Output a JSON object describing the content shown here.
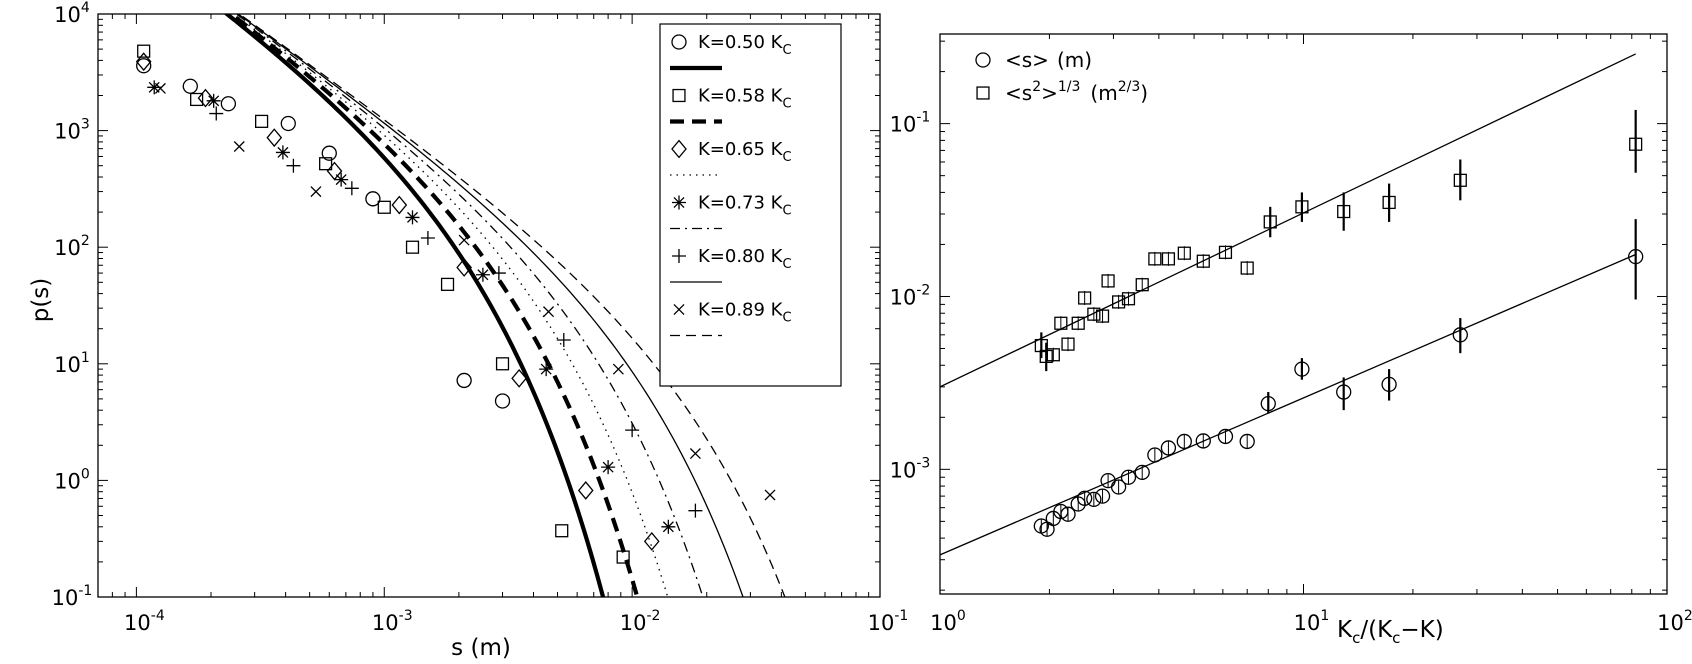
{
  "chart_data": [
    {
      "type": "scatter",
      "xscale": "log",
      "yscale": "log",
      "xlim": [
        7e-05,
        0.1
      ],
      "ylim": [
        0.1,
        10000
      ],
      "xlabel": "s (m)",
      "ylabel": "p(s)",
      "xtick_labels": [
        {
          "value": 0.0001,
          "base": "10",
          "exp": "-4"
        },
        {
          "value": 0.001,
          "base": "10",
          "exp": "-3"
        },
        {
          "value": 0.01,
          "base": "10",
          "exp": "-2"
        },
        {
          "value": 0.1,
          "base": "10",
          "exp": "-1"
        }
      ],
      "ytick_labels": [
        {
          "value": 0.1,
          "base": "10",
          "exp": "-1"
        },
        {
          "value": 1,
          "base": "10",
          "exp": "0"
        },
        {
          "value": 10,
          "base": "10",
          "exp": "1"
        },
        {
          "value": 100,
          "base": "10",
          "exp": "2"
        },
        {
          "value": 1000,
          "base": "10",
          "exp": "3"
        },
        {
          "value": 10000,
          "base": "10",
          "exp": "4"
        }
      ],
      "legend_position": "top-right",
      "series": [
        {
          "label_main": "K=0.50 K",
          "label_sub": "C",
          "marker": "circle",
          "points": [
            [
              0.000107,
              3600
            ],
            [
              0.000165,
              2400
            ],
            [
              0.000235,
              1700
            ],
            [
              0.00041,
              1150
            ],
            [
              0.0006,
              640
            ],
            [
              0.0009,
              260
            ],
            [
              0.0021,
              7.2
            ],
            [
              0.003,
              4.8
            ]
          ],
          "fit": {
            "style": "thick-solid",
            "A": 43000,
            "sc": 0.00118
          }
        },
        {
          "label_main": "K=0.58 K",
          "label_sub": "C",
          "marker": "square",
          "points": [
            [
              0.000107,
              4800
            ],
            [
              0.000175,
              1850
            ],
            [
              0.00032,
              1200
            ],
            [
              0.00058,
              520
            ],
            [
              0.001,
              220
            ],
            [
              0.0013,
              100
            ],
            [
              0.0018,
              48
            ],
            [
              0.003,
              10
            ],
            [
              0.0052,
              0.37
            ],
            [
              0.0092,
              0.22
            ]
          ],
          "fit": {
            "style": "thick-dashed",
            "A": 43000,
            "sc": 0.00175
          }
        },
        {
          "label_main": "K=0.65 K",
          "label_sub": "C",
          "marker": "diamond",
          "points": [
            [
              0.000107,
              3900
            ],
            [
              0.00019,
              1900
            ],
            [
              0.00036,
              870
            ],
            [
              0.00063,
              450
            ],
            [
              0.00115,
              230
            ],
            [
              0.0021,
              67
            ],
            [
              0.0035,
              7.5
            ],
            [
              0.0065,
              0.82
            ],
            [
              0.012,
              0.3
            ]
          ],
          "fit": {
            "style": "thin-dotted",
            "A": 43000,
            "sc": 0.0025
          }
        },
        {
          "label_main": "K=0.73 K",
          "label_sub": "C",
          "marker": "asterisk",
          "points": [
            [
              0.000118,
              2350
            ],
            [
              0.000205,
              1800
            ],
            [
              0.00039,
              650
            ],
            [
              0.00067,
              380
            ],
            [
              0.0013,
              180
            ],
            [
              0.0025,
              58
            ],
            [
              0.0045,
              9
            ],
            [
              0.008,
              1.3
            ],
            [
              0.014,
              0.4
            ]
          ],
          "fit": {
            "style": "thin-dashdot",
            "A": 43000,
            "sc": 0.0038
          }
        },
        {
          "label_main": "K=0.80 K",
          "label_sub": "C",
          "marker": "plus",
          "points": [
            [
              0.00021,
              1400
            ],
            [
              0.00043,
              500
            ],
            [
              0.00074,
              320
            ],
            [
              0.0015,
              120
            ],
            [
              0.0029,
              60
            ],
            [
              0.0053,
              16
            ],
            [
              0.01,
              2.7
            ],
            [
              0.018,
              0.55
            ]
          ],
          "fit": {
            "style": "thin-solid",
            "A": 43000,
            "sc": 0.0062
          }
        },
        {
          "label_main": "K=0.89 K",
          "label_sub": "C",
          "marker": "cross",
          "points": [
            [
              0.000125,
              2300
            ],
            [
              0.00026,
              730
            ],
            [
              0.00053,
              300
            ],
            [
              0.0021,
              115
            ],
            [
              0.0046,
              28
            ],
            [
              0.0088,
              9
            ],
            [
              0.018,
              1.7
            ],
            [
              0.036,
              0.75
            ]
          ],
          "fit": {
            "style": "thin-dashed",
            "A": 43000,
            "sc": 0.0105
          }
        }
      ]
    },
    {
      "type": "scatter",
      "xscale": "log",
      "yscale": "log",
      "xlim": [
        1,
        100
      ],
      "ylim": [
        0.00019,
        0.33
      ],
      "xlabel_main": "K",
      "xlabel_sub1": "c",
      "xlabel_mid": "/(K",
      "xlabel_sub2": "c",
      "xlabel_end": "−K)",
      "xtick_labels": [
        {
          "value": 1,
          "base": "10",
          "exp": "0"
        },
        {
          "value": 10,
          "base": "10",
          "exp": "1"
        },
        {
          "value": 100,
          "base": "10",
          "exp": "2"
        }
      ],
      "ytick_labels": [
        {
          "value": 0.001,
          "base": "10",
          "exp": "-3"
        },
        {
          "value": 0.01,
          "base": "10",
          "exp": "-2"
        },
        {
          "value": 0.1,
          "base": "10",
          "exp": "-1"
        }
      ],
      "legend_position": "top-left",
      "series": [
        {
          "label_main": "<s>",
          "label_paren": "(m)",
          "marker": "circle",
          "points": [
            [
              1.9,
              0.00047
            ],
            [
              1.97,
              0.00045
            ],
            [
              2.05,
              0.00052
            ],
            [
              2.15,
              0.00057
            ],
            [
              2.25,
              0.00055
            ],
            [
              2.4,
              0.00063
            ],
            [
              2.5,
              0.00068
            ],
            [
              2.65,
              0.00067
            ],
            [
              2.8,
              0.0007
            ],
            [
              2.9,
              0.00086
            ],
            [
              3.1,
              0.00079
            ],
            [
              3.3,
              0.0009
            ],
            [
              3.6,
              0.00096
            ],
            [
              3.9,
              0.00121
            ],
            [
              4.25,
              0.00133
            ],
            [
              4.7,
              0.00145
            ],
            [
              5.3,
              0.00146
            ],
            [
              6.1,
              0.00155
            ],
            [
              7.0,
              0.00145
            ],
            [
              8.0,
              0.0024
            ],
            [
              9.9,
              0.0038
            ],
            [
              12.9,
              0.0028
            ],
            [
              17.2,
              0.0031
            ],
            [
              27.0,
              0.006
            ],
            [
              82.0,
              0.017
            ]
          ],
          "errors": [
            [
              8.0,
              0.0021,
              0.0028
            ],
            [
              9.9,
              0.0033,
              0.0044
            ],
            [
              12.9,
              0.0022,
              0.0034
            ],
            [
              17.2,
              0.0025,
              0.0038
            ],
            [
              27.0,
              0.0047,
              0.0075
            ],
            [
              82.0,
              0.0096,
              0.028
            ]
          ],
          "fit": {
            "x": [
              1,
              82
            ],
            "y": [
              0.00032,
              0.0175
            ]
          }
        },
        {
          "label_main": "<s",
          "label_sup1": "2",
          "label_main2": ">",
          "label_sup2": "1/3",
          "label_paren": "(m",
          "label_sup3": "2/3",
          "label_end": ")",
          "marker": "square",
          "points": [
            [
              1.9,
              0.0052
            ],
            [
              1.96,
              0.0045
            ],
            [
              2.05,
              0.0046
            ],
            [
              2.15,
              0.007
            ],
            [
              2.25,
              0.0053
            ],
            [
              2.4,
              0.007
            ],
            [
              2.5,
              0.0098
            ],
            [
              2.65,
              0.0079
            ],
            [
              2.8,
              0.0077
            ],
            [
              2.9,
              0.0123
            ],
            [
              3.1,
              0.0093
            ],
            [
              3.3,
              0.0097
            ],
            [
              3.6,
              0.0117
            ],
            [
              3.9,
              0.0165
            ],
            [
              4.25,
              0.0165
            ],
            [
              4.7,
              0.0178
            ],
            [
              5.3,
              0.016
            ],
            [
              6.1,
              0.018
            ],
            [
              7.0,
              0.0146
            ],
            [
              8.1,
              0.027
            ],
            [
              9.9,
              0.033
            ],
            [
              12.9,
              0.031
            ],
            [
              17.2,
              0.035
            ],
            [
              27.0,
              0.047
            ],
            [
              82.0,
              0.076
            ]
          ],
          "errors": [
            [
              1.9,
              0.0044,
              0.0062
            ],
            [
              1.96,
              0.0037,
              0.0054
            ],
            [
              8.1,
              0.022,
              0.033
            ],
            [
              9.9,
              0.027,
              0.04
            ],
            [
              12.9,
              0.024,
              0.04
            ],
            [
              17.2,
              0.027,
              0.045
            ],
            [
              27.0,
              0.036,
              0.062
            ],
            [
              82.0,
              0.052,
              0.12
            ]
          ],
          "fit": {
            "x": [
              1,
              82
            ],
            "y": [
              0.003,
              0.253
            ]
          }
        }
      ]
    }
  ]
}
